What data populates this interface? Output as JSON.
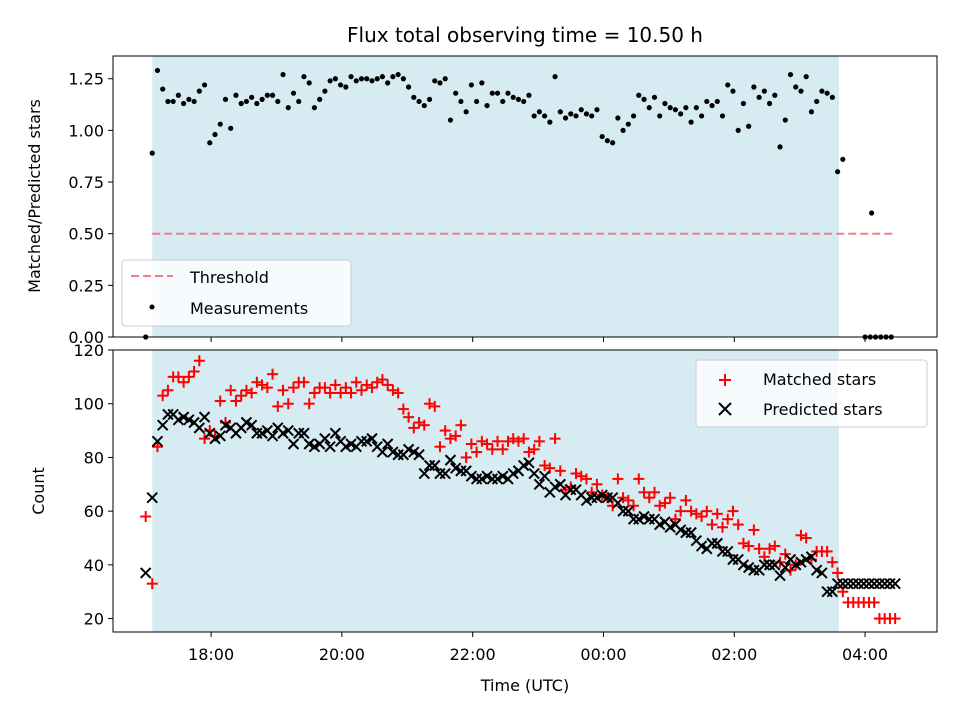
{
  "figure": {
    "title": "Flux total observing time = 10.50 h"
  },
  "colors": {
    "shade": "#add8e6",
    "threshold": "#f08080",
    "matched": "#ff0000",
    "predicted": "#000000",
    "measurement": "#000000"
  },
  "chart_data": [
    {
      "type": "scatter",
      "panel": "top",
      "ylabel": "Matched/Predicted stars",
      "ylim": [
        0,
        1.36
      ],
      "yticks": [
        0.0,
        0.25,
        0.5,
        0.75,
        1.0,
        1.25
      ],
      "ytick_labels": [
        "0.00",
        "0.25",
        "0.50",
        "0.75",
        "1.00",
        "1.25"
      ],
      "xlim_hours": [
        16.5,
        29.1
      ],
      "xtick_hours": [
        18,
        20,
        22,
        24,
        26,
        28
      ],
      "shaded_span_hours": [
        17.1,
        27.6
      ],
      "grid": false,
      "legend_position": "lower-left",
      "legend": [
        "Threshold",
        "Measurements"
      ],
      "threshold": {
        "name": "Threshold",
        "value": 0.5,
        "x_range_hours": [
          17.1,
          28.45
        ]
      },
      "series": [
        {
          "name": "Measurements",
          "x_hours": [
            17.0,
            17.1,
            17.18,
            17.26,
            17.34,
            17.42,
            17.5,
            17.58,
            17.66,
            17.74,
            17.82,
            17.9,
            17.98,
            18.06,
            18.14,
            18.22,
            18.3,
            18.38,
            18.46,
            18.54,
            18.62,
            18.7,
            18.78,
            18.86,
            18.94,
            19.02,
            19.1,
            19.18,
            19.26,
            19.34,
            19.42,
            19.5,
            19.58,
            19.66,
            19.74,
            19.82,
            19.9,
            19.98,
            20.06,
            20.14,
            20.22,
            20.3,
            20.38,
            20.46,
            20.54,
            20.62,
            20.7,
            20.78,
            20.86,
            20.94,
            21.02,
            21.1,
            21.18,
            21.26,
            21.34,
            21.42,
            21.5,
            21.58,
            21.66,
            21.74,
            21.82,
            21.9,
            21.98,
            22.06,
            22.14,
            22.22,
            22.3,
            22.38,
            22.46,
            22.54,
            22.62,
            22.7,
            22.78,
            22.86,
            22.94,
            23.02,
            23.1,
            23.18,
            23.26,
            23.34,
            23.42,
            23.5,
            23.58,
            23.66,
            23.74,
            23.82,
            23.9,
            23.98,
            24.06,
            24.14,
            24.22,
            24.3,
            24.38,
            24.46,
            24.54,
            24.62,
            24.7,
            24.78,
            24.86,
            24.94,
            25.02,
            25.1,
            25.18,
            25.26,
            25.34,
            25.42,
            25.5,
            25.58,
            25.66,
            25.74,
            25.82,
            25.9,
            25.98,
            26.06,
            26.14,
            26.22,
            26.3,
            26.38,
            26.46,
            26.54,
            26.62,
            26.7,
            26.78,
            26.86,
            26.94,
            27.02,
            27.1,
            27.18,
            27.26,
            27.34,
            27.42,
            27.5,
            27.58,
            27.66,
            28.0,
            28.08,
            28.16,
            28.24,
            28.32,
            28.4,
            28.1
          ],
          "y": [
            0.0,
            0.89,
            1.29,
            1.2,
            1.14,
            1.14,
            1.17,
            1.13,
            1.15,
            1.14,
            1.19,
            1.22,
            0.94,
            0.98,
            1.03,
            1.15,
            1.01,
            1.17,
            1.13,
            1.14,
            1.16,
            1.13,
            1.15,
            1.17,
            1.17,
            1.14,
            1.27,
            1.11,
            1.18,
            1.14,
            1.26,
            1.23,
            1.11,
            1.15,
            1.19,
            1.24,
            1.25,
            1.22,
            1.21,
            1.26,
            1.24,
            1.25,
            1.25,
            1.24,
            1.25,
            1.26,
            1.23,
            1.26,
            1.27,
            1.25,
            1.21,
            1.16,
            1.14,
            1.12,
            1.15,
            1.24,
            1.23,
            1.25,
            1.05,
            1.18,
            1.14,
            1.09,
            1.22,
            1.14,
            1.23,
            1.12,
            1.18,
            1.18,
            1.14,
            1.18,
            1.16,
            1.15,
            1.14,
            1.17,
            1.07,
            1.09,
            1.07,
            1.04,
            1.26,
            1.09,
            1.06,
            1.08,
            1.07,
            1.1,
            1.08,
            1.07,
            1.1,
            0.97,
            0.95,
            0.94,
            1.06,
            1.0,
            1.03,
            1.07,
            1.17,
            1.15,
            1.11,
            1.16,
            1.07,
            1.13,
            1.11,
            1.1,
            1.08,
            1.11,
            1.04,
            1.11,
            1.07,
            1.14,
            1.12,
            1.14,
            1.07,
            1.22,
            1.19,
            1.0,
            1.13,
            1.02,
            1.21,
            1.16,
            1.19,
            1.13,
            1.17,
            0.92,
            1.05,
            1.27,
            1.21,
            1.19,
            1.26,
            1.09,
            1.14,
            1.19,
            1.18,
            1.16,
            0.8,
            0.86,
            0.0,
            0.0,
            0.0,
            0.0,
            0.0,
            0.0,
            0.6
          ]
        }
      ]
    },
    {
      "type": "scatter",
      "panel": "bottom",
      "xlabel": "Time (UTC)",
      "ylabel": "Count",
      "ylim": [
        15,
        120
      ],
      "yticks": [
        20,
        40,
        60,
        80,
        100,
        120
      ],
      "ytick_labels": [
        "20",
        "40",
        "60",
        "80",
        "100",
        "120"
      ],
      "xlim_hours": [
        16.5,
        29.1
      ],
      "xtick_hours": [
        18,
        20,
        22,
        24,
        26,
        28
      ],
      "xtick_labels": [
        "18:00",
        "20:00",
        "22:00",
        "00:00",
        "02:00",
        "04:00"
      ],
      "shaded_span_hours": [
        17.1,
        27.6
      ],
      "grid": false,
      "legend_position": "upper-right",
      "legend": [
        "Matched stars",
        "Predicted stars"
      ],
      "x_hours": [
        17.0,
        17.1,
        17.18,
        17.26,
        17.34,
        17.42,
        17.5,
        17.58,
        17.66,
        17.74,
        17.82,
        17.9,
        17.98,
        18.06,
        18.14,
        18.22,
        18.3,
        18.38,
        18.46,
        18.54,
        18.62,
        18.7,
        18.78,
        18.86,
        18.94,
        19.02,
        19.1,
        19.18,
        19.26,
        19.34,
        19.42,
        19.5,
        19.58,
        19.66,
        19.74,
        19.82,
        19.9,
        19.98,
        20.06,
        20.14,
        20.22,
        20.3,
        20.38,
        20.46,
        20.54,
        20.62,
        20.7,
        20.78,
        20.86,
        20.94,
        21.02,
        21.1,
        21.18,
        21.26,
        21.34,
        21.42,
        21.5,
        21.58,
        21.66,
        21.74,
        21.82,
        21.9,
        21.98,
        22.06,
        22.14,
        22.22,
        22.3,
        22.38,
        22.46,
        22.54,
        22.62,
        22.7,
        22.78,
        22.86,
        22.94,
        23.02,
        23.1,
        23.18,
        23.26,
        23.34,
        23.42,
        23.5,
        23.58,
        23.66,
        23.74,
        23.82,
        23.9,
        23.98,
        24.06,
        24.14,
        24.22,
        24.3,
        24.38,
        24.46,
        24.54,
        24.62,
        24.7,
        24.78,
        24.86,
        24.94,
        25.02,
        25.1,
        25.18,
        25.26,
        25.34,
        25.42,
        25.5,
        25.58,
        25.66,
        25.74,
        25.82,
        25.9,
        25.98,
        26.06,
        26.14,
        26.22,
        26.3,
        26.38,
        26.46,
        26.54,
        26.62,
        26.7,
        26.78,
        26.86,
        26.94,
        27.02,
        27.1,
        27.18,
        27.26,
        27.34,
        27.42,
        27.5,
        27.58,
        27.66,
        27.74,
        27.82,
        27.9,
        27.98,
        28.06,
        28.14,
        28.22,
        28.3,
        28.38,
        28.46
      ],
      "series": [
        {
          "name": "Matched stars",
          "marker": "+",
          "y": [
            58,
            33,
            84,
            103,
            105,
            110,
            110,
            108,
            110,
            112,
            116,
            87,
            90,
            88,
            101,
            93,
            105,
            101,
            103,
            105,
            104,
            108,
            107,
            106,
            111,
            99,
            105,
            100,
            106,
            108,
            108,
            100,
            104,
            106,
            106,
            104,
            107,
            104,
            106,
            104,
            108,
            105,
            107,
            106,
            108,
            109,
            107,
            105,
            104,
            98,
            95,
            91,
            93,
            92,
            100,
            99,
            84,
            90,
            87,
            88,
            92,
            80,
            85,
            82,
            86,
            85,
            83,
            86,
            83,
            86,
            87,
            86,
            87,
            82,
            83,
            86,
            77,
            76,
            87,
            75,
            68,
            69,
            74,
            73,
            72,
            67,
            70,
            66,
            65,
            62,
            72,
            65,
            64,
            62,
            72,
            67,
            65,
            67,
            62,
            63,
            65,
            57,
            60,
            64,
            60,
            59,
            58,
            60,
            55,
            59,
            54,
            57,
            60,
            55,
            48,
            47,
            53,
            46,
            43,
            46,
            47,
            41,
            44,
            38,
            40,
            51,
            50,
            42,
            45,
            45,
            45,
            41,
            37,
            30,
            26,
            26,
            26,
            26,
            26,
            26,
            20,
            20,
            20,
            20
          ]
        },
        {
          "name": "Predicted stars",
          "marker": "x",
          "y": [
            37,
            65,
            86,
            92,
            96,
            96,
            94,
            95,
            94,
            93,
            91,
            95,
            89,
            87,
            88,
            92,
            91,
            89,
            91,
            93,
            92,
            89,
            89,
            90,
            88,
            91,
            89,
            90,
            85,
            89,
            89,
            85,
            84,
            85,
            87,
            84,
            89,
            86,
            84,
            85,
            84,
            86,
            86,
            87,
            84,
            82,
            85,
            82,
            81,
            81,
            83,
            82,
            81,
            74,
            77,
            77,
            74,
            74,
            79,
            76,
            75,
            75,
            73,
            72,
            72,
            73,
            72,
            72,
            73,
            72,
            74,
            75,
            77,
            78,
            74,
            70,
            73,
            67,
            69,
            70,
            66,
            68,
            68,
            66,
            64,
            65,
            65,
            66,
            65,
            65,
            63,
            60,
            60,
            57,
            57,
            58,
            57,
            57,
            55,
            56,
            54,
            55,
            53,
            52,
            52,
            49,
            47,
            46,
            48,
            48,
            45,
            45,
            42,
            42,
            40,
            39,
            38,
            38,
            40,
            40,
            40,
            36,
            39,
            42,
            40,
            41,
            42,
            43,
            38,
            37,
            30,
            30,
            33,
            33,
            33,
            33,
            33,
            33,
            33,
            33,
            33,
            33,
            33,
            33
          ]
        }
      ]
    }
  ]
}
